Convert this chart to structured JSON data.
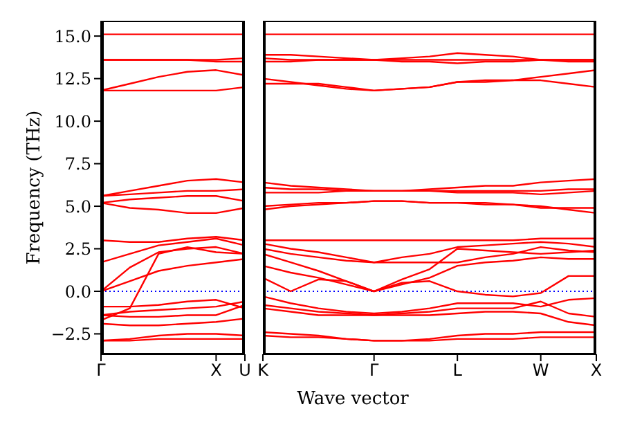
{
  "chart_data": [
    {
      "type": "line",
      "ylabel": "Frequency (THz)",
      "categories": [
        "Γ",
        null,
        null,
        null,
        "X",
        "U"
      ],
      "ylim": [
        -3.7,
        15.9
      ],
      "yticks": [
        {
          "value": -2.5,
          "label": "−2.5"
        },
        {
          "value": 0,
          "label": "0.0"
        },
        {
          "value": 2.5,
          "label": "2.5"
        },
        {
          "value": 5,
          "label": "5.0"
        },
        {
          "value": 7.5,
          "label": "7.5"
        },
        {
          "value": 10,
          "label": "10.0"
        },
        {
          "value": 12.5,
          "label": "12.5"
        },
        {
          "value": 15,
          "label": "15.0"
        }
      ],
      "grid": false,
      "marker": "none",
      "line_style": "solid",
      "ref_lines": [
        {
          "axis": "y",
          "value": 0,
          "color": "#0000ff",
          "line_style": "dotted"
        }
      ],
      "series": [
        {
          "color": "#ff0000",
          "values": [
            15.1,
            15.1,
            15.1,
            15.1,
            15.1,
            15.1
          ]
        },
        {
          "color": "#ff0000",
          "values": [
            13.6,
            13.6,
            13.6,
            13.6,
            13.6,
            13.7
          ]
        },
        {
          "color": "#ff0000",
          "values": [
            13.6,
            13.6,
            13.6,
            13.6,
            13.5,
            13.5
          ]
        },
        {
          "color": "#ff0000",
          "values": [
            11.8,
            12.2,
            12.6,
            12.9,
            13.0,
            12.7
          ]
        },
        {
          "color": "#ff0000",
          "values": [
            11.8,
            11.8,
            11.8,
            11.8,
            11.8,
            12.0
          ]
        },
        {
          "color": "#ff0000",
          "values": [
            5.6,
            5.9,
            6.2,
            6.5,
            6.6,
            6.4
          ]
        },
        {
          "color": "#ff0000",
          "values": [
            5.6,
            5.7,
            5.8,
            5.9,
            5.9,
            6.0
          ]
        },
        {
          "color": "#ff0000",
          "values": [
            5.2,
            5.4,
            5.5,
            5.6,
            5.6,
            5.3
          ]
        },
        {
          "color": "#ff0000",
          "values": [
            5.2,
            4.9,
            4.8,
            4.6,
            4.6,
            4.9
          ]
        },
        {
          "color": "#ff0000",
          "values": [
            3.0,
            2.9,
            2.9,
            3.1,
            3.2,
            3.0
          ]
        },
        {
          "color": "#ff0000",
          "values": [
            1.7,
            2.2,
            2.7,
            2.9,
            3.1,
            2.7
          ]
        },
        {
          "color": "#ff0000",
          "values": [
            0,
            1.4,
            2.3,
            2.5,
            2.6,
            2.2
          ]
        },
        {
          "color": "#ff0000",
          "values": [
            0,
            0.6,
            1.2,
            1.5,
            1.7,
            1.9
          ]
        },
        {
          "color": "#ff0000",
          "values": [
            -1.7,
            -1.0,
            2.2,
            2.6,
            2.3,
            2.2
          ]
        },
        {
          "color": "#ff0000",
          "values": [
            -0.9,
            -0.9,
            -0.8,
            -0.6,
            -0.5,
            -1.0
          ]
        },
        {
          "color": "#ff0000",
          "values": [
            -1.4,
            -1.2,
            -1.1,
            -1.0,
            -0.9,
            -0.6
          ]
        },
        {
          "color": "#ff0000",
          "values": [
            -1.4,
            -1.5,
            -1.5,
            -1.4,
            -1.4,
            -0.8
          ]
        },
        {
          "color": "#ff0000",
          "values": [
            -1.9,
            -2.0,
            -2.0,
            -1.9,
            -1.8,
            -1.6
          ]
        },
        {
          "color": "#ff0000",
          "values": [
            -2.9,
            -2.8,
            -2.6,
            -2.5,
            -2.5,
            -2.6
          ]
        },
        {
          "color": "#ff0000",
          "values": [
            -2.9,
            -2.9,
            -2.8,
            -2.8,
            -2.8,
            -2.8
          ]
        }
      ]
    },
    {
      "type": "line",
      "xlabel": "Wave vector",
      "categories": [
        "K",
        null,
        null,
        null,
        "Γ",
        null,
        null,
        "L",
        null,
        null,
        "W",
        null,
        "X"
      ],
      "ylim": [
        -3.7,
        15.9
      ],
      "tick_labels": "x",
      "grid": false,
      "marker": "none",
      "line_style": "solid",
      "ref_lines": [
        {
          "axis": "y",
          "value": 0,
          "color": "#0000ff",
          "line_style": "dotted"
        }
      ],
      "series": [
        {
          "color": "#ff0000",
          "values": [
            15.1,
            15.1,
            15.1,
            15.1,
            15.1,
            15.1,
            15.1,
            15.1,
            15.1,
            15.1,
            15.1,
            15.1,
            15.1
          ]
        },
        {
          "color": "#ff0000",
          "values": [
            13.9,
            13.9,
            13.8,
            13.7,
            13.6,
            13.7,
            13.8,
            14.0,
            13.9,
            13.8,
            13.6,
            13.6,
            13.6
          ]
        },
        {
          "color": "#ff0000",
          "values": [
            13.7,
            13.6,
            13.6,
            13.6,
            13.6,
            13.5,
            13.5,
            13.4,
            13.5,
            13.5,
            13.6,
            13.6,
            13.6
          ]
        },
        {
          "color": "#ff0000",
          "values": [
            13.5,
            13.5,
            13.6,
            13.6,
            13.6,
            13.6,
            13.6,
            13.6,
            13.6,
            13.6,
            13.6,
            13.5,
            13.5
          ]
        },
        {
          "color": "#ff0000",
          "values": [
            12.5,
            12.3,
            12.1,
            11.9,
            11.8,
            11.9,
            12.0,
            12.3,
            12.3,
            12.4,
            12.4,
            12.2,
            12.0
          ]
        },
        {
          "color": "#ff0000",
          "values": [
            12.2,
            12.2,
            12.2,
            12.0,
            11.8,
            11.9,
            12.0,
            12.3,
            12.4,
            12.4,
            12.6,
            12.8,
            13.0
          ]
        },
        {
          "color": "#ff0000",
          "values": [
            6.4,
            6.2,
            6.1,
            6.0,
            5.9,
            5.9,
            6.0,
            6.1,
            6.2,
            6.2,
            6.4,
            6.5,
            6.6
          ]
        },
        {
          "color": "#ff0000",
          "values": [
            6.1,
            6.0,
            6.0,
            5.9,
            5.9,
            5.9,
            5.9,
            5.9,
            5.9,
            5.9,
            5.9,
            6.0,
            6.0
          ]
        },
        {
          "color": "#ff0000",
          "values": [
            5.8,
            5.8,
            5.8,
            5.9,
            5.9,
            5.9,
            5.9,
            5.8,
            5.8,
            5.8,
            5.7,
            5.8,
            5.9
          ]
        },
        {
          "color": "#ff0000",
          "values": [
            5.0,
            5.1,
            5.2,
            5.2,
            5.3,
            5.3,
            5.2,
            5.2,
            5.1,
            5.1,
            5.0,
            4.8,
            4.6
          ]
        },
        {
          "color": "#ff0000",
          "values": [
            4.8,
            5.0,
            5.1,
            5.2,
            5.3,
            5.3,
            5.2,
            5.2,
            5.2,
            5.1,
            4.9,
            4.9,
            4.9
          ]
        },
        {
          "color": "#ff0000",
          "values": [
            3.0,
            3.0,
            3.0,
            3.0,
            3.0,
            3.0,
            3.0,
            3.0,
            3.0,
            3.0,
            3.1,
            3.1,
            3.1
          ]
        },
        {
          "color": "#ff0000",
          "values": [
            2.8,
            2.5,
            2.3,
            2.0,
            1.7,
            2.0,
            2.2,
            2.6,
            2.7,
            2.8,
            2.9,
            2.8,
            2.6
          ]
        },
        {
          "color": "#ff0000",
          "values": [
            2.5,
            2.2,
            2.0,
            1.8,
            1.7,
            1.7,
            1.7,
            1.7,
            2.0,
            2.2,
            2.6,
            2.4,
            2.3
          ]
        },
        {
          "color": "#ff0000",
          "values": [
            2.2,
            1.7,
            1.2,
            0.6,
            0,
            0.7,
            1.3,
            2.5,
            2.4,
            2.3,
            2.2,
            2.3,
            2.4
          ]
        },
        {
          "color": "#ff0000",
          "values": [
            1.5,
            1.1,
            0.8,
            0.4,
            0,
            0.4,
            0.8,
            1.5,
            1.7,
            1.8,
            2.0,
            1.9,
            1.9
          ]
        },
        {
          "color": "#ff0000",
          "values": [
            0.8,
            0,
            0.7,
            0.6,
            0,
            0.5,
            0.6,
            0,
            -0.2,
            -0.3,
            -0.1,
            0.9,
            0.9
          ]
        },
        {
          "color": "#ff0000",
          "values": [
            -0.3,
            -0.7,
            -1.0,
            -1.2,
            -1.3,
            -1.2,
            -1.0,
            -0.7,
            -0.7,
            -0.7,
            -0.9,
            -0.5,
            -0.4
          ]
        },
        {
          "color": "#ff0000",
          "values": [
            -0.8,
            -1.0,
            -1.2,
            -1.3,
            -1.4,
            -1.3,
            -1.2,
            -1.0,
            -1.0,
            -1.0,
            -0.6,
            -1.3,
            -1.5
          ]
        },
        {
          "color": "#ff0000",
          "values": [
            -1.0,
            -1.2,
            -1.4,
            -1.4,
            -1.4,
            -1.4,
            -1.4,
            -1.3,
            -1.2,
            -1.2,
            -1.3,
            -1.8,
            -2.0
          ]
        },
        {
          "color": "#ff0000",
          "values": [
            -2.4,
            -2.5,
            -2.6,
            -2.8,
            -2.9,
            -2.9,
            -2.8,
            -2.6,
            -2.5,
            -2.5,
            -2.4,
            -2.4,
            -2.4
          ]
        },
        {
          "color": "#ff0000",
          "values": [
            -2.6,
            -2.7,
            -2.7,
            -2.8,
            -2.9,
            -2.9,
            -2.9,
            -2.8,
            -2.8,
            -2.8,
            -2.7,
            -2.7,
            -2.7
          ]
        }
      ]
    }
  ]
}
